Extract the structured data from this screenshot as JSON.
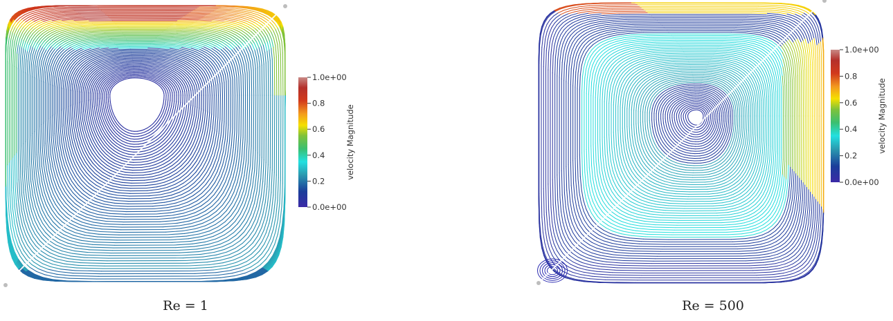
{
  "colors": {
    "colormap": [
      "#3b2aa6",
      "#1b3d9a",
      "#2a9ab0",
      "#22e0e0",
      "#3bbf70",
      "#7fc23a",
      "#f5e000",
      "#f39a1e",
      "#d23a1c",
      "#b4302a",
      "#c98a86"
    ],
    "wall_point": "#bdbdbd"
  },
  "panels": [
    {
      "id": "re1",
      "caption": "Re = 1",
      "colorbar": {
        "title": "velocity Magnitude",
        "ticks": [
          "1.0e+00",
          "0.8",
          "0.6",
          "0.4",
          "0.2",
          "0.0e+00"
        ]
      }
    },
    {
      "id": "re500",
      "caption": "Re = 500",
      "colorbar": {
        "title": "velocity Magnitude",
        "ticks": [
          "1.0e+00",
          "0.8",
          "0.6",
          "0.4",
          "0.2",
          "0.0e+00"
        ]
      }
    }
  ]
}
